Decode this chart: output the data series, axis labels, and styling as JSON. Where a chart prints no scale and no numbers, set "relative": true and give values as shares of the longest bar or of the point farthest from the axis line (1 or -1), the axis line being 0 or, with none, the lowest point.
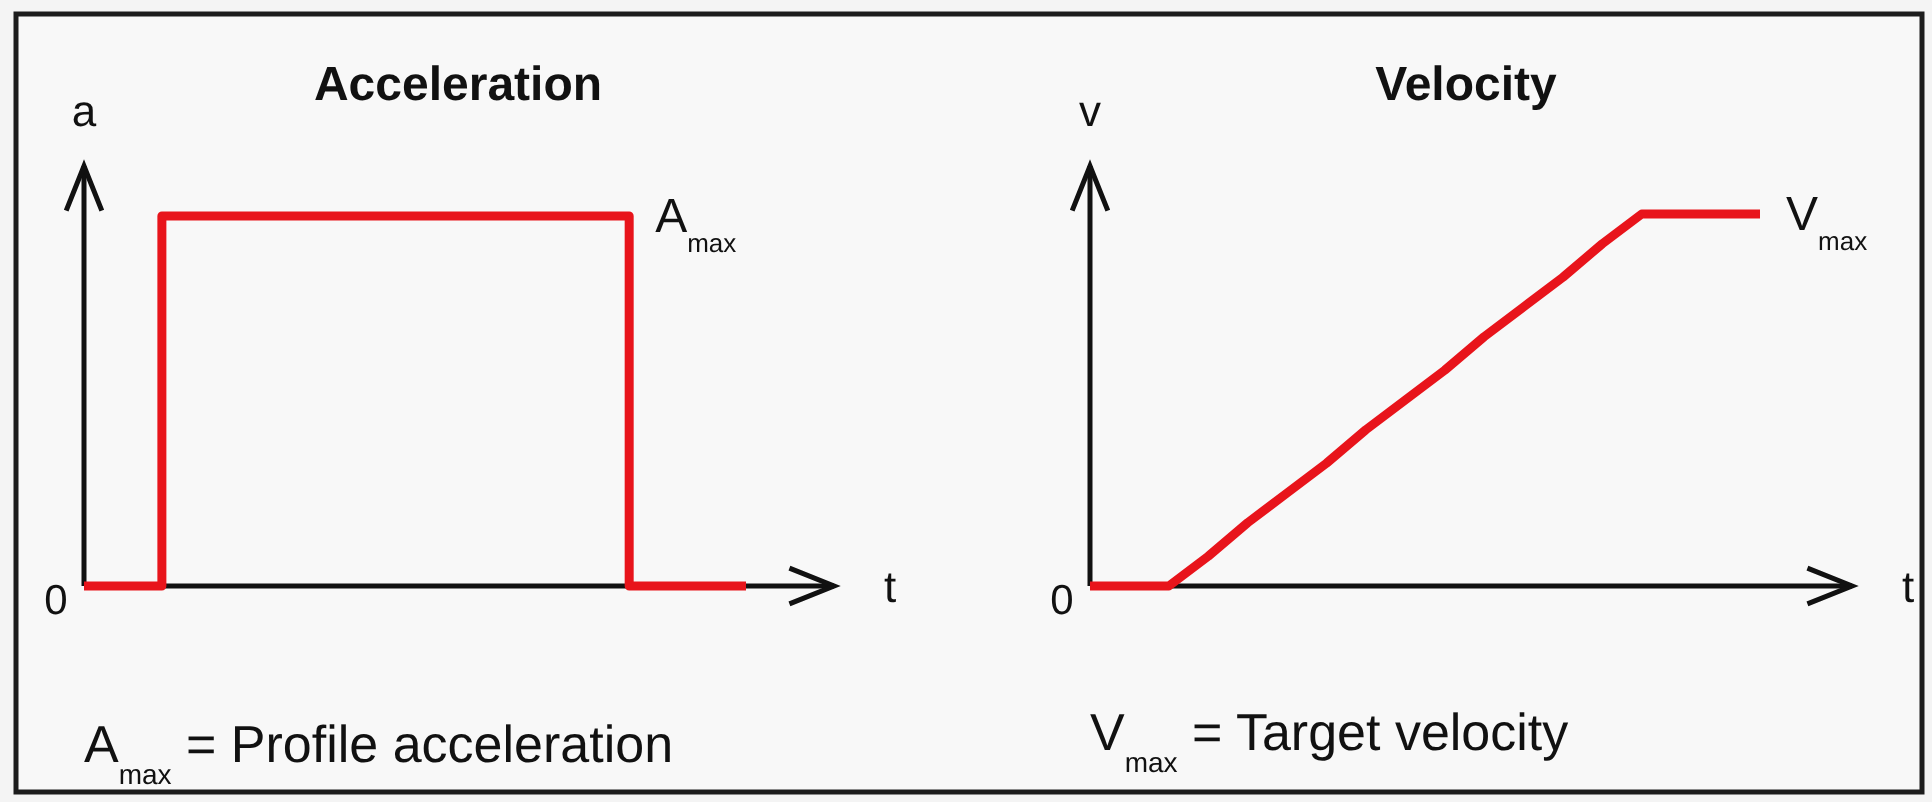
{
  "chart_data": [
    {
      "type": "step",
      "title": "Acceleration",
      "xlabel": "t",
      "ylabel": "a",
      "relative": true,
      "categories": [
        null,
        null,
        null,
        null,
        null,
        null,
        null,
        null,
        null,
        null,
        null,
        null,
        null,
        null,
        null,
        null,
        null,
        null
      ],
      "values": [
        0,
        0,
        1,
        1,
        1,
        1,
        1,
        1,
        1,
        1,
        1,
        1,
        1,
        1,
        0,
        0,
        0,
        0
      ],
      "color": "#e8141b",
      "annotations": [
        "0",
        "A$_{max}$",
        "A$_{max}$ = Profile acceleration"
      ]
    },
    {
      "type": "line",
      "title": "Velocity",
      "xlabel": "t",
      "ylabel": "v",
      "relative": true,
      "categories": [
        null,
        null,
        null,
        null,
        null,
        null,
        null,
        null,
        null,
        null,
        null,
        null,
        null,
        null,
        null,
        null,
        null,
        null
      ],
      "values": [
        0,
        0,
        0,
        0.08,
        0.17,
        0.25,
        0.33,
        0.42,
        0.5,
        0.58,
        0.67,
        0.75,
        0.83,
        0.92,
        1,
        1,
        1,
        1
      ],
      "color": "#e8141b",
      "annotations": [
        "0",
        "V$_{max}$",
        "V$_{max}$ = Target velocity"
      ]
    }
  ]
}
